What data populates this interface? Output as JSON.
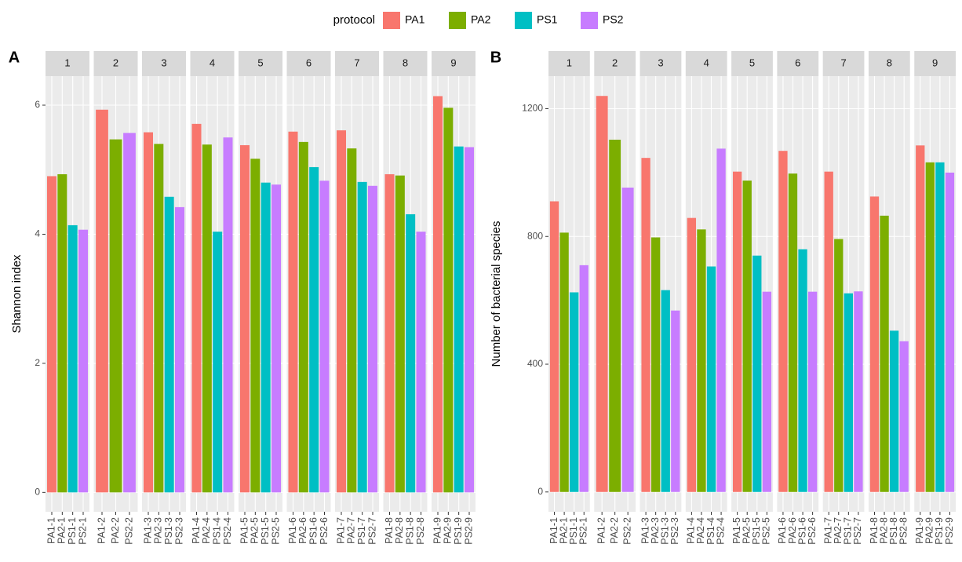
{
  "chart_data": [
    {
      "type": "bar",
      "panel_label": "A",
      "ylabel": "Shannon index",
      "legend_title": "protocol",
      "facets": [
        "1",
        "2",
        "3",
        "4",
        "5",
        "6",
        "7",
        "8",
        "9"
      ],
      "series": [
        {
          "name": "PA1",
          "color": "#F8766D",
          "values": [
            4.9,
            5.93,
            5.58,
            5.71,
            5.38,
            5.59,
            5.61,
            4.93,
            6.14
          ],
          "labels": [
            "PA1-1",
            "PA1-2",
            "PA1-3",
            "PA1-4",
            "PA1-5",
            "PA1-6",
            "PA1-7",
            "PA1-8",
            "PA1-9"
          ]
        },
        {
          "name": "PA2",
          "color": "#7CAE00",
          "values": [
            4.93,
            5.47,
            5.4,
            5.39,
            5.17,
            5.43,
            5.33,
            4.91,
            5.96
          ],
          "labels": [
            "PA2-1",
            "PA2-2",
            "PA2-3",
            "PA2-4",
            "PA2-5",
            "PA2-6",
            "PA2-7",
            "PA2-8",
            "PA2-9"
          ]
        },
        {
          "name": "PS1",
          "color": "#00BFC4",
          "values": [
            4.14,
            null,
            4.58,
            4.04,
            4.8,
            5.04,
            4.81,
            4.31,
            5.36
          ],
          "labels": [
            "PS1-1",
            null,
            "PS1-3",
            "PS1-4",
            "PS1-5",
            "PS1-6",
            "PS1-7",
            "PS1-8",
            "PS1-9"
          ]
        },
        {
          "name": "PS2",
          "color": "#C77CFF",
          "values": [
            4.07,
            5.57,
            4.42,
            5.5,
            4.77,
            4.83,
            4.75,
            4.04,
            5.35
          ],
          "labels": [
            "PS2-1",
            "PS2-2",
            "PS2-3",
            "PS2-4",
            "PS2-5",
            "PS2-6",
            "PS2-7",
            "PS2-8",
            "PS2-9"
          ]
        }
      ],
      "ylim": [
        -0.3,
        6.45
      ],
      "yticks": [
        0,
        2,
        4,
        6
      ],
      "grid": true
    },
    {
      "type": "bar",
      "panel_label": "B",
      "ylabel": "Number of bacterial species",
      "facets": [
        "1",
        "2",
        "3",
        "4",
        "5",
        "6",
        "7",
        "8",
        "9"
      ],
      "series": [
        {
          "color": "#F8766D",
          "values": [
            910,
            1240,
            1046,
            858,
            1003,
            1068,
            1003,
            925,
            1085
          ],
          "labels": [
            "PA1-1",
            "PA1-2",
            "PA1-3",
            "PA1-4",
            "PA1-5",
            "PA1-6",
            "PA1-7",
            "PA1-8",
            "PA1-9"
          ]
        },
        {
          "color": "#7CAE00",
          "values": [
            812,
            1103,
            797,
            822,
            975,
            997,
            792,
            865,
            1032
          ],
          "labels": [
            "PA2-1",
            "PA2-2",
            "PA2-3",
            "PA2-4",
            "PA2-5",
            "PA2-6",
            "PA2-7",
            "PA2-8",
            "PA2-9"
          ]
        },
        {
          "color": "#00BFC4",
          "values": [
            625,
            null,
            632,
            706,
            740,
            760,
            622,
            505,
            1032
          ],
          "labels": [
            "PS1-1",
            null,
            "PS1-3",
            "PS1-4",
            "PS1-5",
            "PS1-6",
            "PS1-7",
            "PS1-8",
            "PS1-9"
          ]
        },
        {
          "color": "#C77CFF",
          "values": [
            710,
            953,
            568,
            1075,
            627,
            627,
            628,
            472,
            1000
          ],
          "labels": [
            "PS2-1",
            "PS2-2",
            "PS2-3",
            "PS2-4",
            "PS2-5",
            "PS2-6",
            "PS2-7",
            "PS2-8",
            "PS2-9"
          ]
        }
      ],
      "ylim": [
        -62,
        1302
      ],
      "yticks": [
        0,
        400,
        800,
        1200
      ],
      "grid": true
    }
  ]
}
